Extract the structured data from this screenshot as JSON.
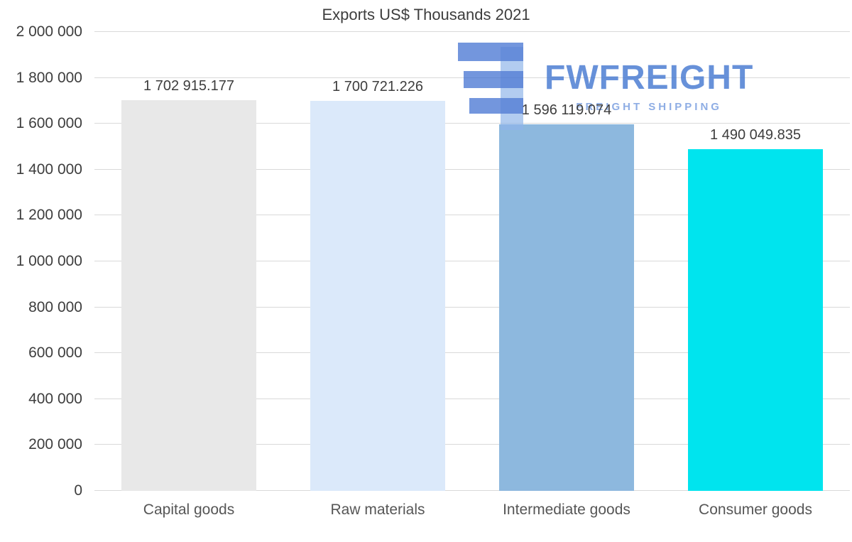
{
  "chart_data": {
    "type": "bar",
    "title": "Exports US$ Thousands 2021",
    "xlabel": "",
    "ylabel": "",
    "categories": [
      "Capital goods",
      "Raw materials",
      "Intermediate goods",
      "Consumer goods"
    ],
    "values": [
      1702915.177,
      1700721.226,
      1596119.074,
      1490049.835
    ],
    "value_labels": [
      "1 702 915.177",
      "1 700 721.226",
      "1 596 119.074",
      "1 490 049.835"
    ],
    "bar_colors": [
      "#e8e8e8",
      "#dbe9fa",
      "#8db8de",
      "#00e4ee"
    ],
    "ylim": [
      0,
      2000000
    ],
    "ytick_interval": 200000,
    "yticks": [
      {
        "value": 0,
        "label": "0"
      },
      {
        "value": 200000,
        "label": "200 000"
      },
      {
        "value": 400000,
        "label": "400 000"
      },
      {
        "value": 600000,
        "label": "600 000"
      },
      {
        "value": 800000,
        "label": "800 000"
      },
      {
        "value": 1000000,
        "label": "1 000 000"
      },
      {
        "value": 1200000,
        "label": "1 200 000"
      },
      {
        "value": 1400000,
        "label": "1 400 000"
      },
      {
        "value": 1600000,
        "label": "1 600 000"
      },
      {
        "value": 1800000,
        "label": "1 800 000"
      },
      {
        "value": 2000000,
        "label": "2 000 000"
      }
    ],
    "grid": true,
    "legend": "none"
  },
  "watermark": {
    "brand": "FWFREIGHT",
    "tagline": "FREIGHT SHIPPING",
    "brand_color": "#4d7ed3",
    "tagline_color": "#7b9fe0",
    "logo_dark_color": "#3d6fd0",
    "logo_light_color": "#8fb4ea"
  }
}
